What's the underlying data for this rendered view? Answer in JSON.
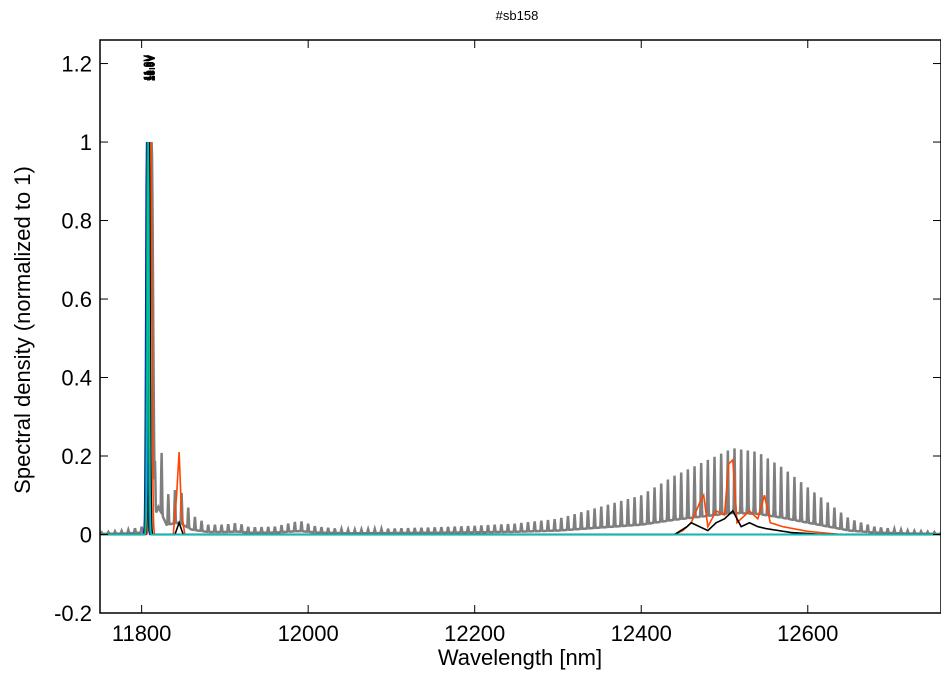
{
  "chart_data": {
    "type": "line",
    "title": "#sb158",
    "xlabel": "Wavelength [nm]",
    "ylabel": "Spectral density (normalized to 1)",
    "xlim": [
      11750,
      12760
    ],
    "ylim": [
      -0.2,
      1.26
    ],
    "xticks": [
      11800,
      12000,
      12200,
      12400,
      12600
    ],
    "yticks": [
      -0.2,
      0,
      0.2,
      0.4,
      0.6,
      0.8,
      1,
      1.2
    ],
    "xtick_labels": [
      "11800",
      "12000",
      "12200",
      "12400",
      "12600"
    ],
    "ytick_labels": [
      "-0.2",
      "0",
      "0.2",
      "0.4",
      "0.6",
      "0.8",
      "1",
      "1.2"
    ],
    "grid": false,
    "peak_labels": [
      "11.0V",
      "11.5V",
      "12.0V",
      "12.5V",
      "13.0V"
    ],
    "colors": {
      "gray": "#7f7f7f",
      "orange": "#ff4500",
      "black": "#000000",
      "blue": "#0000ff",
      "green": "#00a000",
      "cyan": "#00bfbf"
    },
    "series": [
      {
        "color": "#7f7f7f",
        "fp_period": 8,
        "main_peak": {
          "center": 11812,
          "width": 2.5,
          "height": 1.0
        },
        "points": [
          [
            11750,
            0.005
          ],
          [
            11780,
            0.01
          ],
          [
            11800,
            0.02
          ],
          [
            11810,
            0.05
          ],
          [
            11820,
            0.28
          ],
          [
            11830,
            0.1
          ],
          [
            11845,
            0.12
          ],
          [
            11860,
            0.05
          ],
          [
            11880,
            0.025
          ],
          [
            11900,
            0.025
          ],
          [
            11915,
            0.03
          ],
          [
            11930,
            0.018
          ],
          [
            11960,
            0.02
          ],
          [
            11990,
            0.035
          ],
          [
            12010,
            0.02
          ],
          [
            12050,
            0.012
          ],
          [
            12100,
            0.015
          ],
          [
            12150,
            0.018
          ],
          [
            12200,
            0.022
          ],
          [
            12250,
            0.028
          ],
          [
            12300,
            0.04
          ],
          [
            12350,
            0.07
          ],
          [
            12400,
            0.1
          ],
          [
            12440,
            0.15
          ],
          [
            12480,
            0.19
          ],
          [
            12510,
            0.22
          ],
          [
            12540,
            0.21
          ],
          [
            12570,
            0.17
          ],
          [
            12600,
            0.12
          ],
          [
            12625,
            0.08
          ],
          [
            12650,
            0.04
          ],
          [
            12680,
            0.02
          ],
          [
            12720,
            0.01
          ],
          [
            12760,
            0.005
          ]
        ]
      },
      {
        "color": "#ff4500",
        "main_peak": {
          "center": 11811,
          "width": 1.8,
          "height": 1.0
        },
        "points": [
          [
            11750,
            0.0
          ],
          [
            11838,
            0.0
          ],
          [
            11842,
            0.1
          ],
          [
            11845,
            0.21
          ],
          [
            11848,
            0.05
          ],
          [
            11852,
            0.0
          ],
          [
            12440,
            0.0
          ],
          [
            12450,
            0.01
          ],
          [
            12460,
            0.03
          ],
          [
            12470,
            0.08
          ],
          [
            12475,
            0.1
          ],
          [
            12480,
            0.02
          ],
          [
            12490,
            0.06
          ],
          [
            12500,
            0.05
          ],
          [
            12505,
            0.18
          ],
          [
            12510,
            0.19
          ],
          [
            12515,
            0.03
          ],
          [
            12525,
            0.05
          ],
          [
            12530,
            0.06
          ],
          [
            12540,
            0.04
          ],
          [
            12548,
            0.1
          ],
          [
            12555,
            0.03
          ],
          [
            12570,
            0.02
          ],
          [
            12600,
            0.008
          ],
          [
            12640,
            0.0
          ],
          [
            12760,
            0.0
          ]
        ]
      },
      {
        "color": "#000000",
        "main_peak": {
          "center": 11809,
          "width": 1.6,
          "height": 1.0
        },
        "points": [
          [
            11750,
            0.0
          ],
          [
            11840,
            0.0
          ],
          [
            11845,
            0.03
          ],
          [
            11850,
            0.0
          ],
          [
            12440,
            0.0
          ],
          [
            12455,
            0.02
          ],
          [
            12460,
            0.03
          ],
          [
            12470,
            0.02
          ],
          [
            12480,
            0.01
          ],
          [
            12490,
            0.03
          ],
          [
            12500,
            0.04
          ],
          [
            12510,
            0.06
          ],
          [
            12520,
            0.02
          ],
          [
            12530,
            0.03
          ],
          [
            12540,
            0.02
          ],
          [
            12550,
            0.015
          ],
          [
            12580,
            0.005
          ],
          [
            12620,
            0.0
          ],
          [
            12760,
            0.0
          ]
        ]
      },
      {
        "color": "#0000ff",
        "main_peak": {
          "center": 11806,
          "width": 1.4,
          "height": 1.0
        },
        "points": [
          [
            11750,
            0.0
          ],
          [
            12760,
            0.0
          ]
        ]
      },
      {
        "color": "#00a000",
        "main_peak": {
          "center": 11807,
          "width": 1.4,
          "height": 1.0
        },
        "points": [
          [
            11750,
            0.0
          ],
          [
            12760,
            0.0
          ]
        ]
      },
      {
        "color": "#00bfbf",
        "main_peak": {
          "center": 11808,
          "width": 1.4,
          "height": 1.0
        },
        "points": [
          [
            11750,
            0.0
          ],
          [
            12760,
            0.0
          ]
        ]
      }
    ]
  }
}
